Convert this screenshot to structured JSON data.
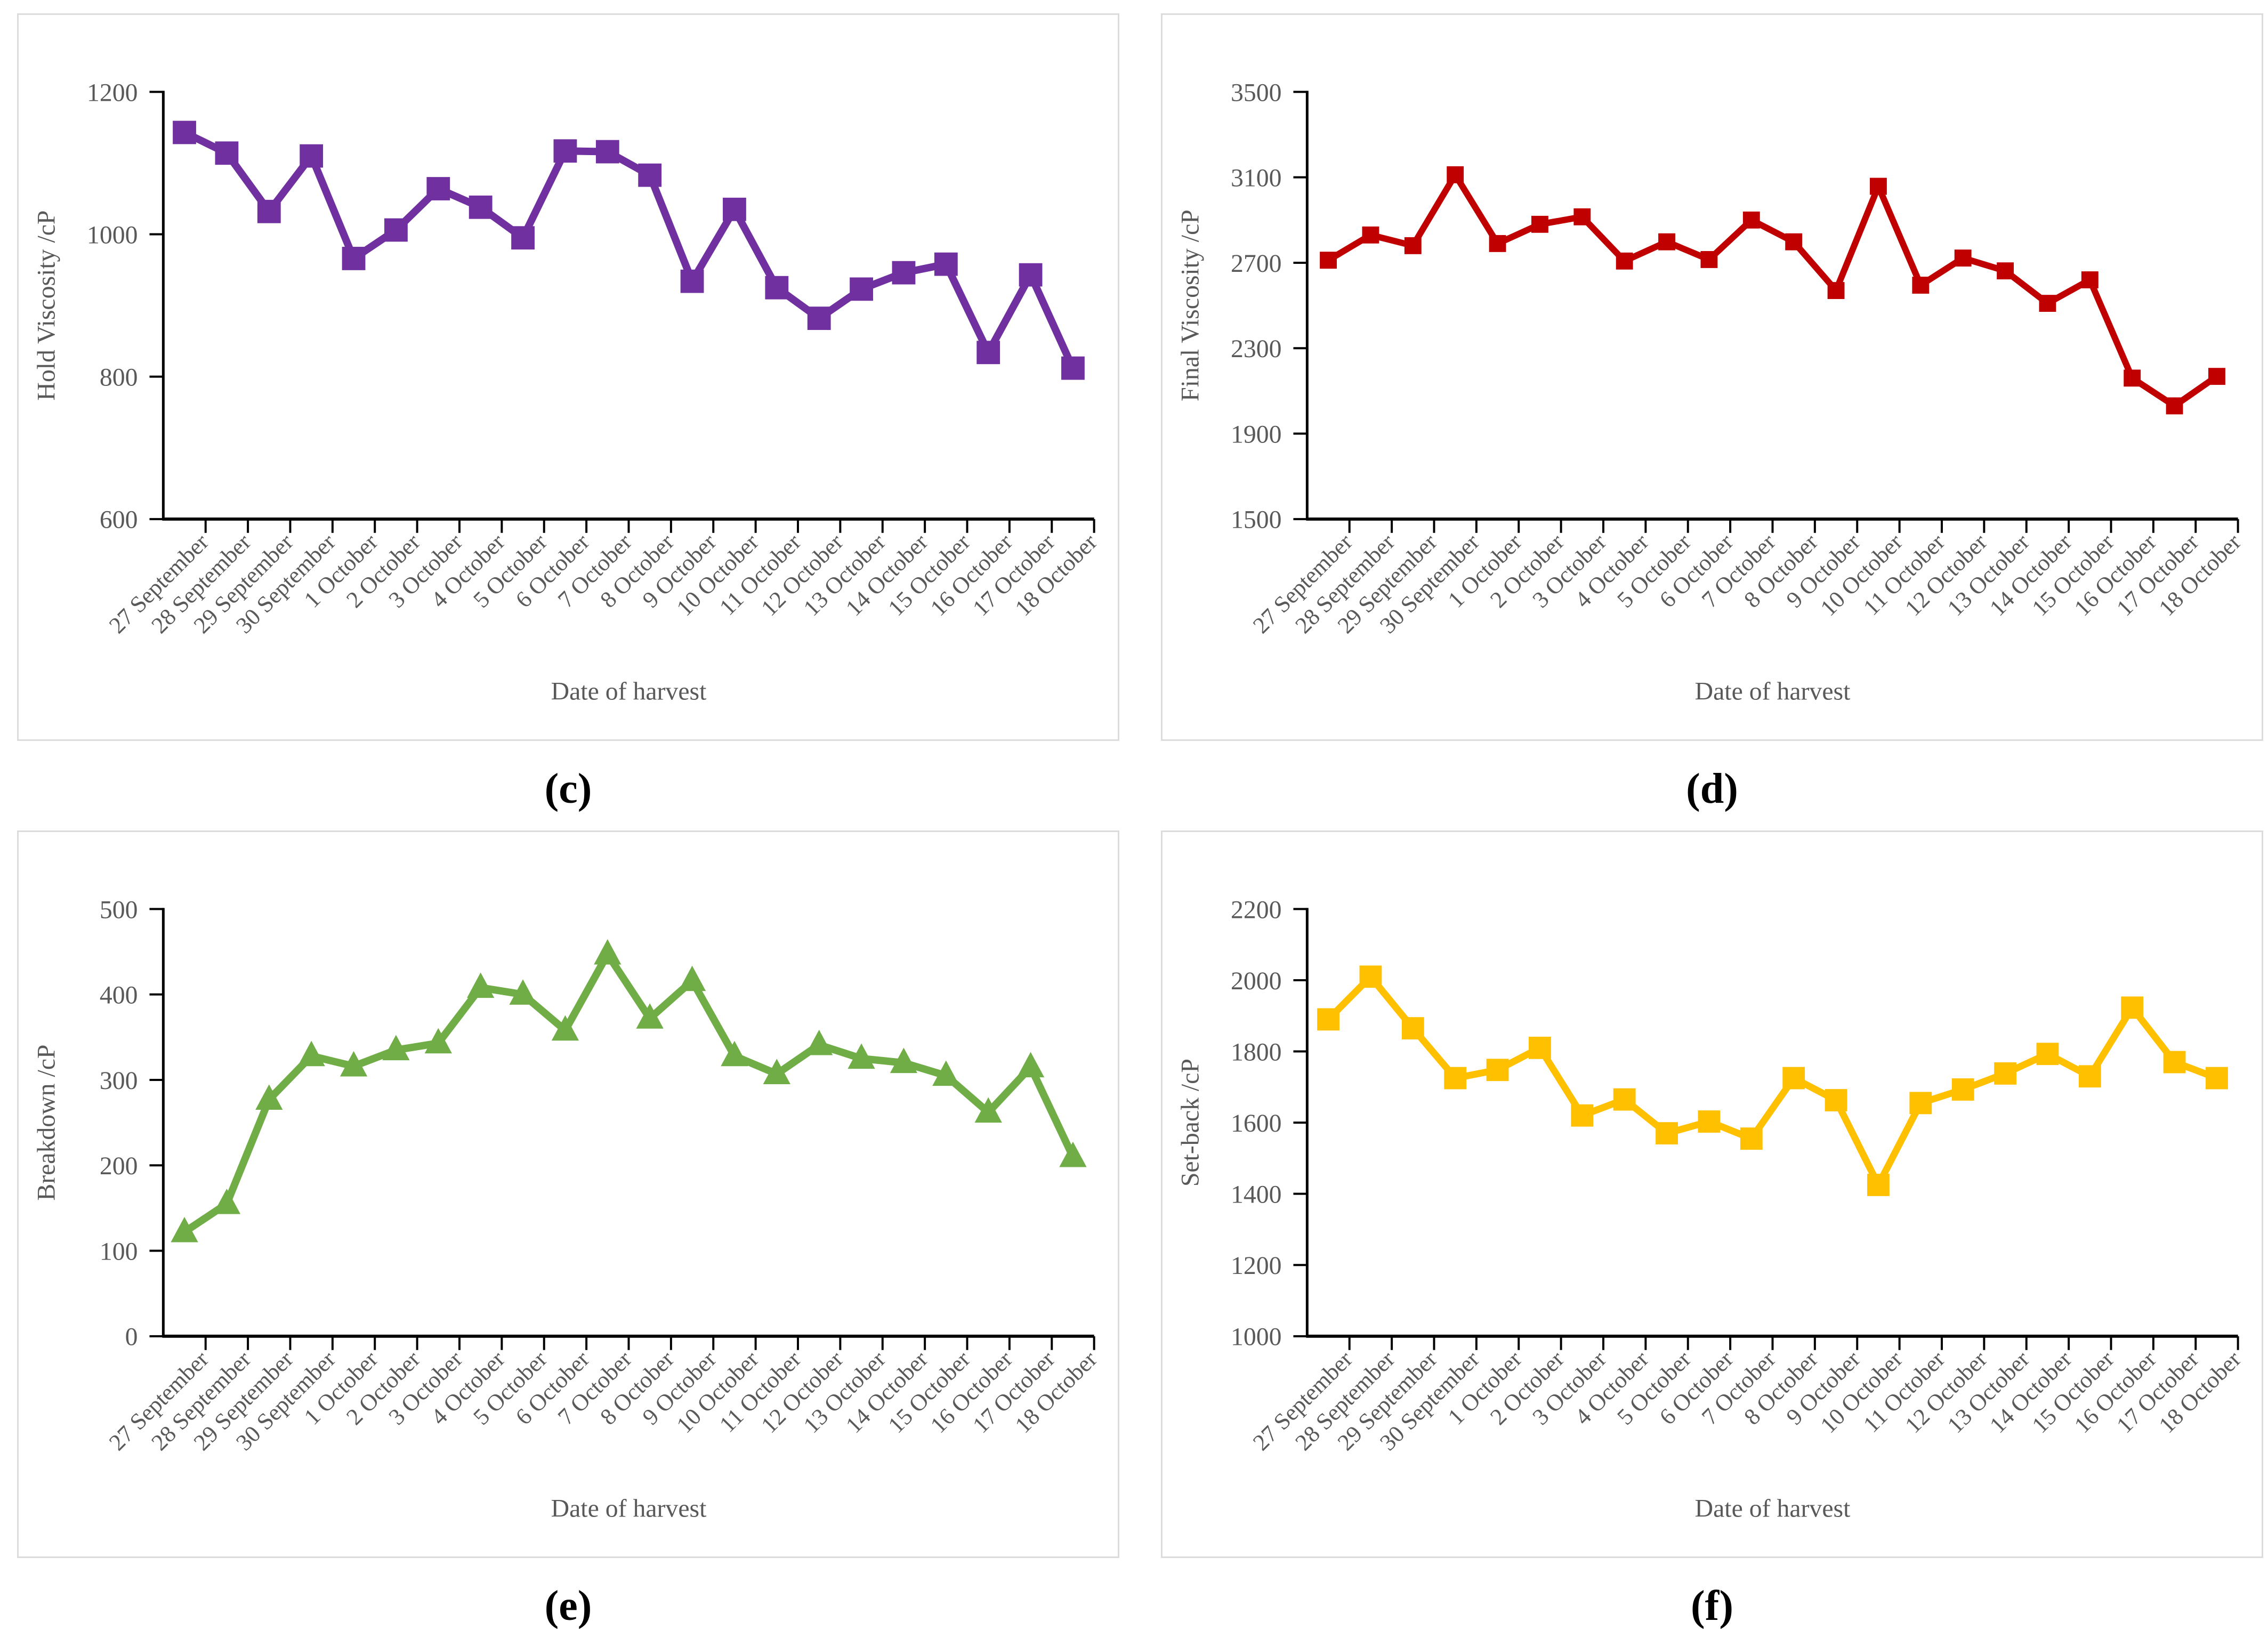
{
  "page": {
    "background": "#ffffff",
    "text_color": "#595959",
    "axis_color": "#000000",
    "panel_border_color": "#dcdcdc"
  },
  "shared": {
    "x_axis_label": "Date of harvest",
    "categories": [
      "27 September",
      "28 September",
      "29 September",
      "30 September",
      "1 October",
      "2 October",
      "3 October",
      "4 October",
      "5 October",
      "6 October",
      "7 October",
      "8 October",
      "9 October",
      "10 October",
      "11 October",
      "12 October",
      "13 October",
      "14 October",
      "15 October",
      "16 October",
      "17 October",
      "18 October"
    ]
  },
  "chart_data": [
    {
      "id": "c",
      "type": "line",
      "caption": "(c)",
      "ylabel": "Hold Viscosity /cP",
      "xlabel": "Date of harvest",
      "ylim": [
        600,
        1200
      ],
      "ytick_step": 200,
      "yticks": [
        600,
        800,
        1000,
        1200
      ],
      "series_color": "#7030A0",
      "marker": "square",
      "marker_size": 44,
      "line_width": 14,
      "values": [
        1143,
        1114,
        1032,
        1110,
        966,
        1006,
        1064,
        1038,
        995,
        1117,
        1116,
        1083,
        934,
        1035,
        925,
        882,
        923,
        946,
        958,
        834,
        943,
        812
      ]
    },
    {
      "id": "d",
      "type": "line",
      "caption": "(d)",
      "ylabel": "Final Viscosity /cP",
      "xlabel": "Date of harvest",
      "ylim": [
        1500,
        3500
      ],
      "ytick_step": 400,
      "yticks": [
        1500,
        1900,
        2300,
        2700,
        3100,
        3500
      ],
      "series_color": "#C00000",
      "marker": "square",
      "marker_size": 32,
      "line_width": 12,
      "values": [
        2712,
        2830,
        2780,
        3112,
        2790,
        2880,
        2915,
        2708,
        2798,
        2715,
        2900,
        2798,
        2570,
        3058,
        2595,
        2722,
        2662,
        2510,
        2620,
        2160,
        2030,
        2168
      ]
    },
    {
      "id": "e",
      "type": "line",
      "caption": "(e)",
      "ylabel": "Breakdown /cP",
      "xlabel": "Date of harvest",
      "ylim": [
        0,
        500
      ],
      "ytick_step": 100,
      "yticks": [
        0,
        100,
        200,
        300,
        400,
        500
      ],
      "series_color": "#70AD47",
      "marker": "triangle",
      "marker_size": 46,
      "line_width": 14,
      "values": [
        122,
        155,
        277,
        328,
        316,
        335,
        343,
        408,
        400,
        358,
        447,
        372,
        416,
        328,
        307,
        341,
        325,
        320,
        305,
        262,
        315,
        210
      ]
    },
    {
      "id": "f",
      "type": "line",
      "caption": "(f)",
      "ylabel": "Set-back /cP",
      "xlabel": "Date of harvest",
      "ylim": [
        1000,
        2200
      ],
      "ytick_step": 200,
      "yticks": [
        1000,
        1200,
        1400,
        1600,
        1800,
        2000,
        2200
      ],
      "series_color": "#FFC000",
      "marker": "square",
      "marker_size": 42,
      "line_width": 13,
      "values": [
        1890,
        2010,
        1865,
        1725,
        1748,
        1810,
        1620,
        1665,
        1570,
        1603,
        1555,
        1725,
        1663,
        1425,
        1655,
        1693,
        1738,
        1793,
        1730,
        1923,
        1770,
        1725
      ]
    }
  ]
}
